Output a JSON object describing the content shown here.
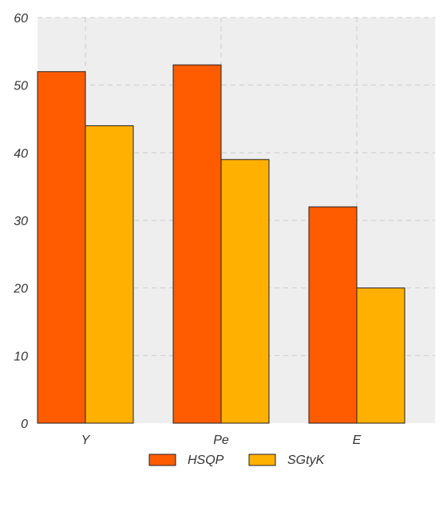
{
  "chart_data": {
    "type": "bar",
    "title": "",
    "xlabel": "",
    "ylabel": "",
    "categories": [
      "Y",
      "Pe",
      "E"
    ],
    "series": [
      {
        "name": "HSQP",
        "values": [
          52,
          53,
          32
        ],
        "color": "#ff5c00"
      },
      {
        "name": "SGtyK",
        "values": [
          44,
          39,
          20
        ],
        "color": "#ffb000"
      }
    ],
    "ylim": [
      0,
      60
    ],
    "yticks": [
      0,
      10,
      20,
      30,
      40,
      50,
      60
    ],
    "grid": true,
    "legend_position": "bottom-center",
    "background_color": "#eeeeee",
    "grid_color": "#cccccc"
  }
}
